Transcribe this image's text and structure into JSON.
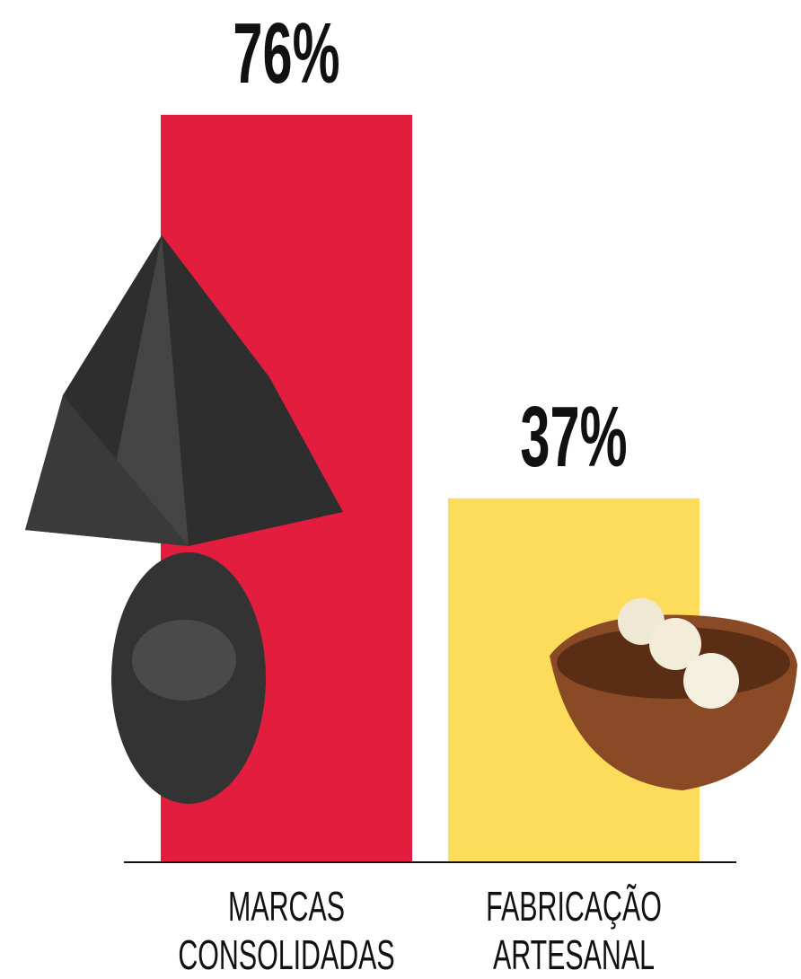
{
  "chart_data": {
    "type": "bar",
    "categories": [
      "MARCAS CONSOLIDADAS",
      "FABRICAÇÃO ARTESANAL"
    ],
    "values": [
      76,
      37
    ],
    "value_labels": [
      "76%",
      "37%"
    ],
    "colors": [
      "#e21d3e",
      "#fddc5c"
    ]
  }
}
